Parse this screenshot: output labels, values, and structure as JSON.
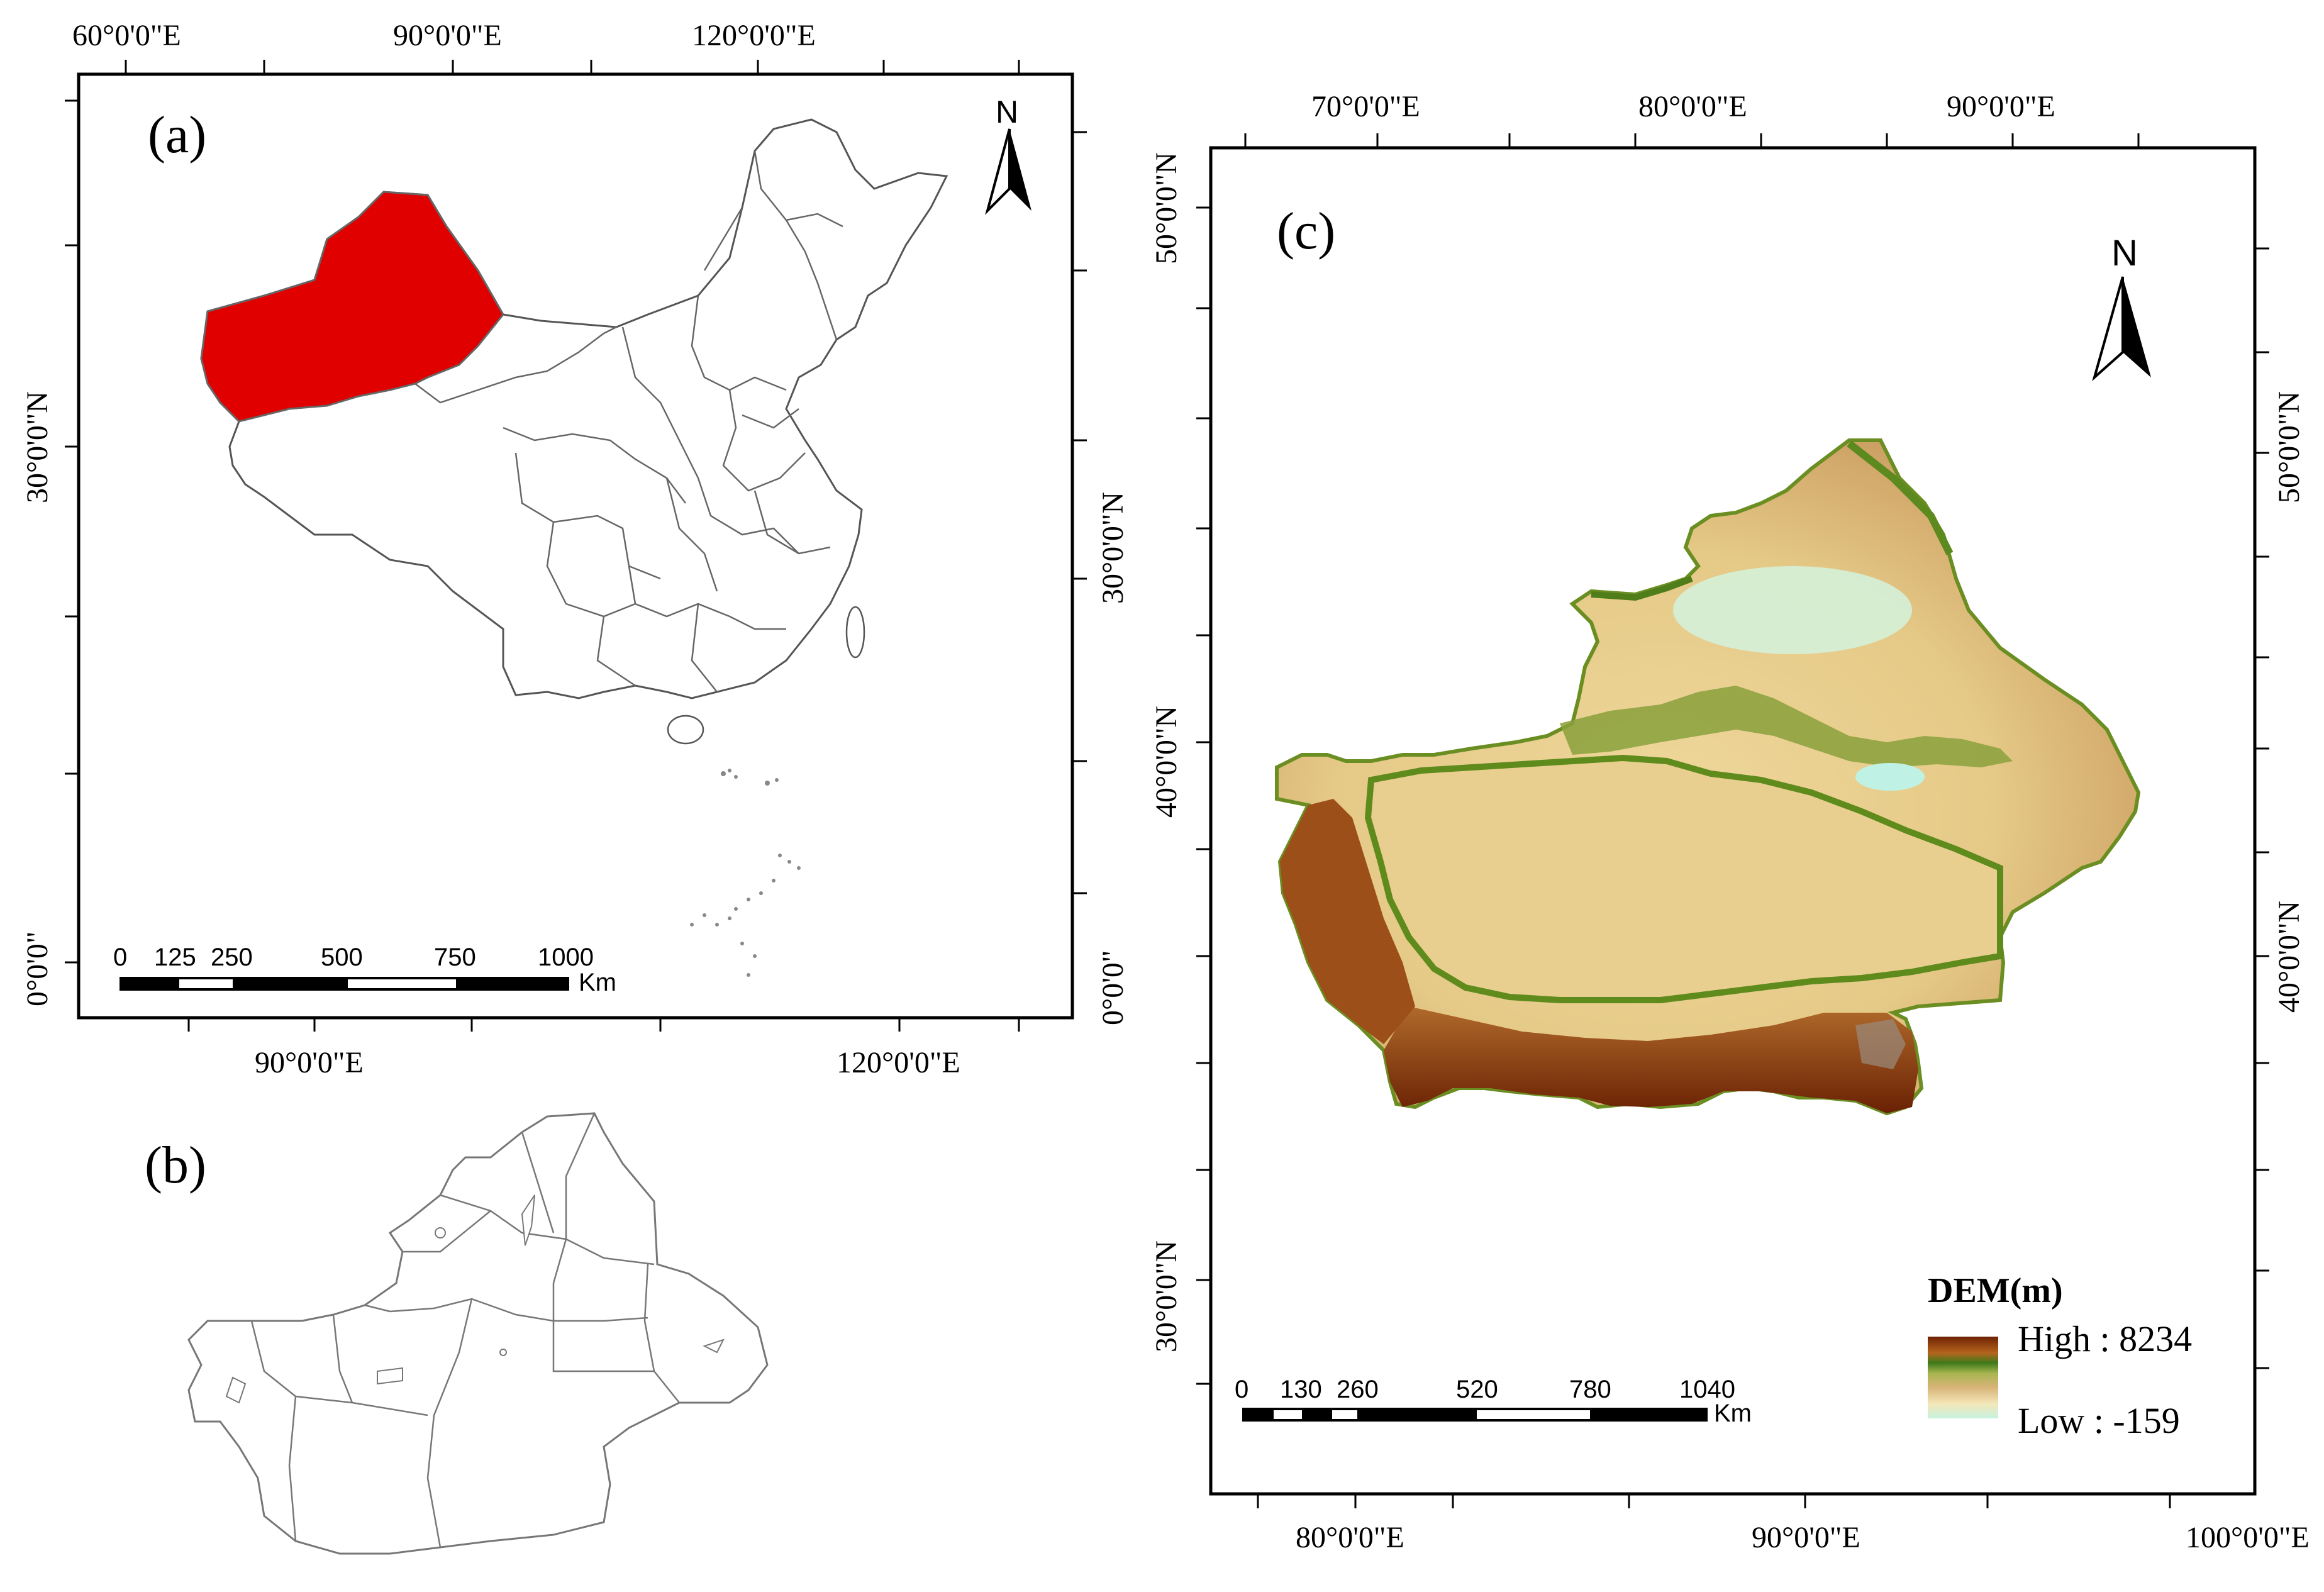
{
  "panel_a": {
    "label": "(a)",
    "top_ticks": [
      "60°0'0\"E",
      "90°0'0\"E",
      "120°0'0\"E"
    ],
    "bottom_ticks": [
      "90°0'0\"E",
      "120°0'0\"E"
    ],
    "left_ticks": [
      "30°0'0\"N",
      "0°0'0\""
    ],
    "right_ticks": [
      "30°0'0\"N",
      "0°0'0\""
    ],
    "north": "N",
    "scale_numbers": [
      "0",
      "125",
      "250",
      "500",
      "750",
      "1000"
    ],
    "scale_unit": "Km",
    "highlight_color": "#e00000"
  },
  "panel_b": {
    "label": "(b)"
  },
  "panel_c": {
    "label": "(c)",
    "top_ticks": [
      "70°0'0\"E",
      "80°0'0\"E",
      "90°0'0\"E"
    ],
    "bottom_ticks": [
      "80°0'0\"E",
      "90°0'0\"E",
      "100°0'0\"E"
    ],
    "left_ticks": [
      "50°0'0\"N",
      "40°0'0\"N",
      "30°0'0\"N"
    ],
    "right_ticks": [
      "50°0'0\"N",
      "40°0'0\"N"
    ],
    "north": "N",
    "scale_numbers": [
      "0",
      "130",
      "260",
      "520",
      "780",
      "1040"
    ],
    "scale_unit": "Km",
    "legend": {
      "title": "DEM(m)",
      "high": "High : 8234",
      "low": "Low : -159",
      "colors": [
        "#7a2a05",
        "#b5651d",
        "#6b8e23",
        "#c8b070",
        "#f1e2b0",
        "#c8f4e0"
      ]
    }
  }
}
